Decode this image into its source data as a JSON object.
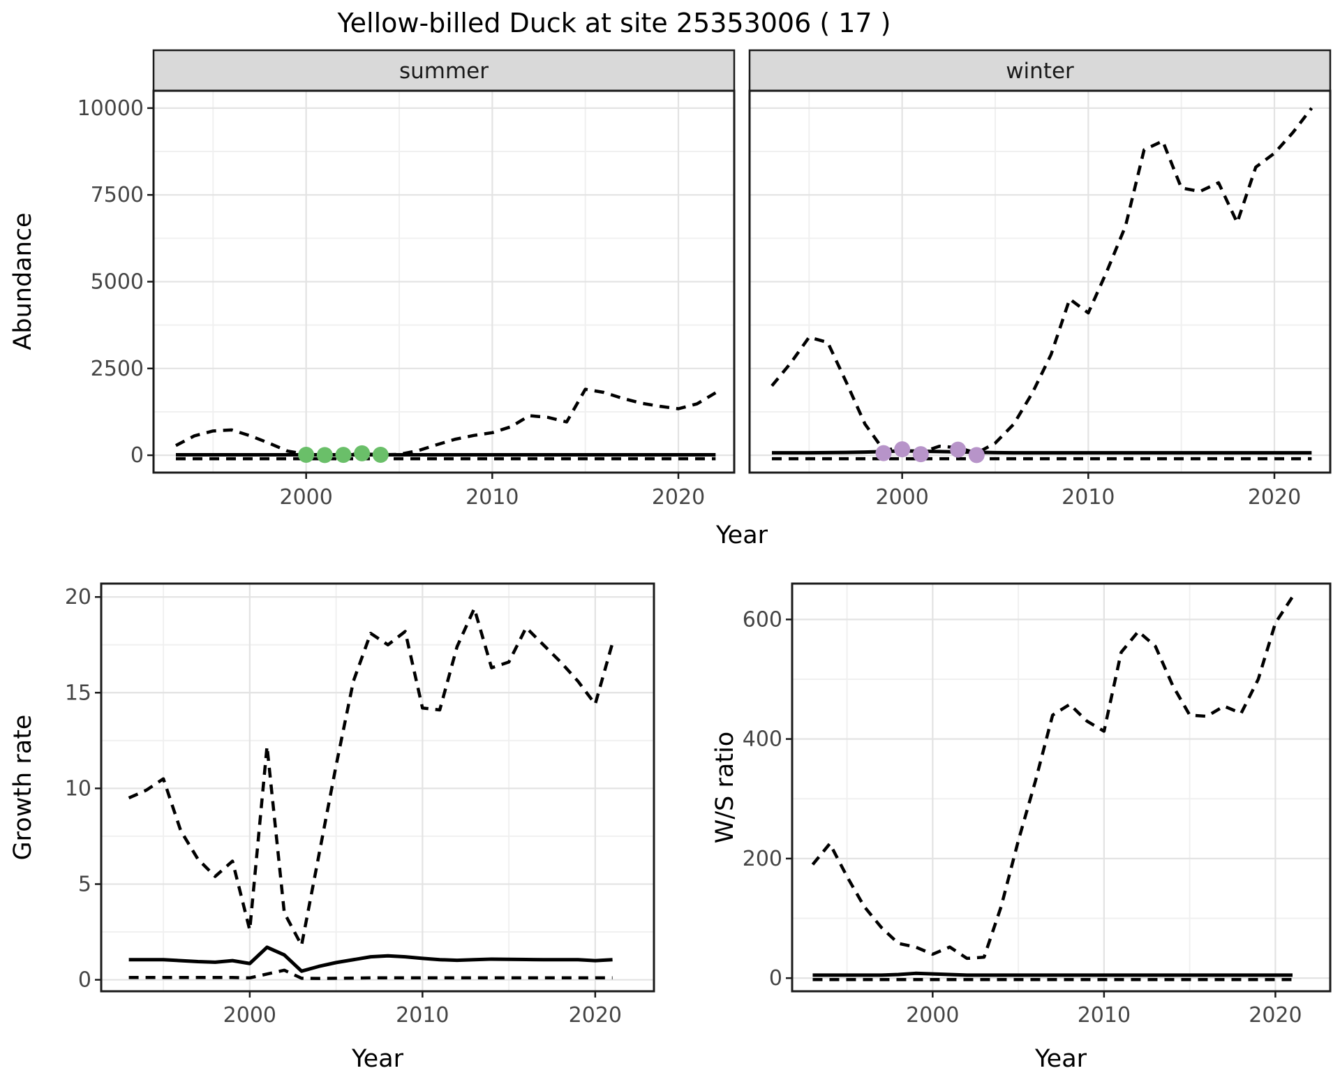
{
  "title": "Yellow-billed Duck at site 25353006 ( 17 )",
  "colors": {
    "summer_dot": "#6abf69",
    "winter_dot": "#b794c9",
    "strip_bg": "#d9d9d9",
    "panel_border": "#1a1a1a",
    "grid_major": "#e3e3e3",
    "grid_minor": "#f0f0f0",
    "line": "#000000",
    "tick_text": "#444444"
  },
  "chart_data": [
    {
      "id": "abundance-summer",
      "type": "line",
      "facet_label": "summer",
      "xlabel": "Year",
      "ylabel": "Abundance",
      "x_ticks": [
        2000,
        2010,
        2020
      ],
      "y_ticks": [
        0,
        2500,
        5000,
        7500,
        10000
      ],
      "xlim": [
        1991.8,
        2023.0
      ],
      "ylim": [
        -500,
        10500
      ],
      "grid": true,
      "legend": "none",
      "years": [
        1993,
        1994,
        1995,
        1996,
        1997,
        1998,
        1999,
        2000,
        2001,
        2002,
        2003,
        2004,
        2005,
        2006,
        2007,
        2008,
        2009,
        2010,
        2011,
        2012,
        2013,
        2014,
        2015,
        2016,
        2017,
        2018,
        2019,
        2020,
        2021,
        2022
      ],
      "series": [
        {
          "name": "upper-dashed",
          "style": "dashed",
          "values": [
            280,
            560,
            700,
            730,
            560,
            350,
            120,
            30,
            15,
            15,
            40,
            15,
            25,
            130,
            300,
            460,
            570,
            650,
            820,
            1140,
            1090,
            960,
            1900,
            1810,
            1640,
            1500,
            1410,
            1340,
            1480,
            1800
          ]
        },
        {
          "name": "solid-mid",
          "style": "solid",
          "values": [
            12,
            12,
            12,
            12,
            12,
            12,
            12,
            12,
            12,
            12,
            12,
            12,
            12,
            12,
            12,
            12,
            12,
            12,
            12,
            12,
            12,
            12,
            12,
            12,
            12,
            12,
            12,
            12,
            12,
            12
          ]
        },
        {
          "name": "lower-dashed",
          "style": "dashed",
          "values": [
            0,
            0,
            0,
            0,
            0,
            0,
            0,
            0,
            0,
            0,
            0,
            0,
            0,
            0,
            0,
            0,
            0,
            0,
            0,
            0,
            0,
            0,
            0,
            0,
            0,
            0,
            0,
            0,
            0,
            0
          ]
        }
      ],
      "points": {
        "color": "#6abf69",
        "years": [
          2000,
          2001,
          2002,
          2003,
          2004
        ],
        "values": [
          12,
          5,
          10,
          55,
          12
        ]
      }
    },
    {
      "id": "abundance-winter",
      "type": "line",
      "facet_label": "winter",
      "xlabel": "Year",
      "ylabel": "Abundance",
      "x_ticks": [
        2000,
        2010,
        2020
      ],
      "y_ticks": [
        0,
        2500,
        5000,
        7500,
        10000
      ],
      "xlim": [
        1991.8,
        2023.0
      ],
      "ylim": [
        -500,
        10500
      ],
      "grid": true,
      "legend": "none",
      "years": [
        1993,
        1994,
        1995,
        1996,
        1997,
        1998,
        1999,
        2000,
        2001,
        2002,
        2003,
        2004,
        2005,
        2006,
        2007,
        2008,
        2009,
        2010,
        2011,
        2012,
        2013,
        2014,
        2015,
        2016,
        2017,
        2018,
        2019,
        2020,
        2021,
        2022
      ],
      "series": [
        {
          "name": "upper-dashed",
          "style": "dashed",
          "values": [
            2000,
            2650,
            3400,
            3250,
            2100,
            900,
            150,
            210,
            80,
            260,
            220,
            60,
            350,
            900,
            1800,
            2900,
            4500,
            4100,
            5300,
            6600,
            8800,
            9050,
            7700,
            7600,
            7850,
            6700,
            8300,
            8700,
            9300,
            10000
          ]
        },
        {
          "name": "solid-mid",
          "style": "solid",
          "values": [
            70,
            70,
            70,
            75,
            80,
            90,
            105,
            125,
            115,
            105,
            95,
            85,
            75,
            70,
            70,
            70,
            70,
            70,
            70,
            70,
            70,
            70,
            70,
            70,
            70,
            70,
            70,
            70,
            70,
            70
          ]
        },
        {
          "name": "lower-dashed",
          "style": "dashed",
          "values": [
            0,
            0,
            0,
            0,
            0,
            0,
            0,
            0,
            0,
            0,
            0,
            0,
            0,
            0,
            0,
            0,
            0,
            0,
            0,
            0,
            0,
            0,
            0,
            0,
            0,
            0,
            0,
            0,
            0,
            0
          ]
        }
      ],
      "points": {
        "color": "#b794c9",
        "years": [
          1999,
          2000,
          2001,
          2003,
          2004
        ],
        "values": [
          60,
          170,
          30,
          160,
          5
        ]
      }
    },
    {
      "id": "growth-rate",
      "type": "line",
      "facet_label": "",
      "xlabel": "Year",
      "ylabel": "Growth rate",
      "x_ticks": [
        2000,
        2010,
        2020
      ],
      "y_ticks": [
        0,
        5,
        10,
        15,
        20
      ],
      "xlim": [
        1991.4,
        2023.4
      ],
      "ylim": [
        -0.6,
        20.7
      ],
      "grid": true,
      "legend": "none",
      "years": [
        1993,
        1994,
        1995,
        1996,
        1997,
        1998,
        1999,
        2000,
        2001,
        2002,
        2003,
        2004,
        2005,
        2006,
        2007,
        2008,
        2009,
        2010,
        2011,
        2012,
        2013,
        2014,
        2015,
        2016,
        2017,
        2018,
        2019,
        2020,
        2021
      ],
      "series": [
        {
          "name": "upper-dashed",
          "style": "dashed",
          "values": [
            9.5,
            9.9,
            10.5,
            7.8,
            6.3,
            5.4,
            6.2,
            2.6,
            12.2,
            3.5,
            1.8,
            6.5,
            11.2,
            15.6,
            18.1,
            17.5,
            18.2,
            14.2,
            14.1,
            17.4,
            19.4,
            16.3,
            16.6,
            18.4,
            17.5,
            16.6,
            15.6,
            14.4,
            17.6
          ]
        },
        {
          "name": "solid-mid",
          "style": "solid",
          "values": [
            1.05,
            1.05,
            1.05,
            1.0,
            0.95,
            0.92,
            1.0,
            0.85,
            1.7,
            1.3,
            0.45,
            0.7,
            0.9,
            1.05,
            1.2,
            1.25,
            1.2,
            1.12,
            1.05,
            1.02,
            1.05,
            1.08,
            1.07,
            1.06,
            1.05,
            1.05,
            1.05,
            1.0,
            1.05
          ]
        },
        {
          "name": "lower-dashed",
          "style": "dashed",
          "values": [
            0.12,
            0.12,
            0.12,
            0.12,
            0.12,
            0.12,
            0.12,
            0.1,
            0.3,
            0.5,
            0.08,
            0.07,
            0.08,
            0.09,
            0.1,
            0.1,
            0.1,
            0.1,
            0.1,
            0.1,
            0.1,
            0.1,
            0.1,
            0.1,
            0.1,
            0.1,
            0.1,
            0.1,
            0.1
          ]
        }
      ]
    },
    {
      "id": "ws-ratio",
      "type": "line",
      "facet_label": "",
      "xlabel": "Year",
      "ylabel": "W/S ratio",
      "x_ticks": [
        2000,
        2010,
        2020
      ],
      "y_ticks": [
        0,
        200,
        400,
        600
      ],
      "xlim": [
        1991.8,
        2023.2
      ],
      "ylim": [
        -22,
        660
      ],
      "grid": true,
      "legend": "none",
      "years": [
        1993,
        1994,
        1995,
        1996,
        1997,
        1998,
        1999,
        2000,
        2001,
        2002,
        2003,
        2004,
        2005,
        2006,
        2007,
        2008,
        2009,
        2010,
        2011,
        2012,
        2013,
        2014,
        2015,
        2016,
        2017,
        2018,
        2019,
        2020,
        2021
      ],
      "series": [
        {
          "name": "upper-dashed",
          "style": "dashed",
          "values": [
            190,
            225,
            170,
            120,
            85,
            58,
            52,
            40,
            52,
            33,
            35,
            120,
            230,
            330,
            440,
            458,
            430,
            413,
            545,
            580,
            555,
            490,
            440,
            438,
            455,
            443,
            500,
            594,
            638
          ]
        },
        {
          "name": "solid-mid",
          "style": "solid",
          "values": [
            5,
            5,
            5,
            5,
            5,
            6,
            8,
            7,
            6,
            5,
            5,
            5,
            5,
            5,
            5,
            5,
            5,
            5,
            5,
            5,
            5,
            5,
            5,
            5,
            5,
            5,
            5,
            5,
            5
          ]
        },
        {
          "name": "lower-dashed",
          "style": "dashed",
          "values": [
            1,
            1,
            1,
            1,
            1,
            1,
            1,
            1,
            1,
            1,
            1,
            1,
            1,
            1,
            1,
            1,
            1,
            1,
            1,
            1,
            1,
            1,
            1,
            1,
            1,
            1,
            1,
            1,
            1
          ]
        }
      ]
    }
  ]
}
